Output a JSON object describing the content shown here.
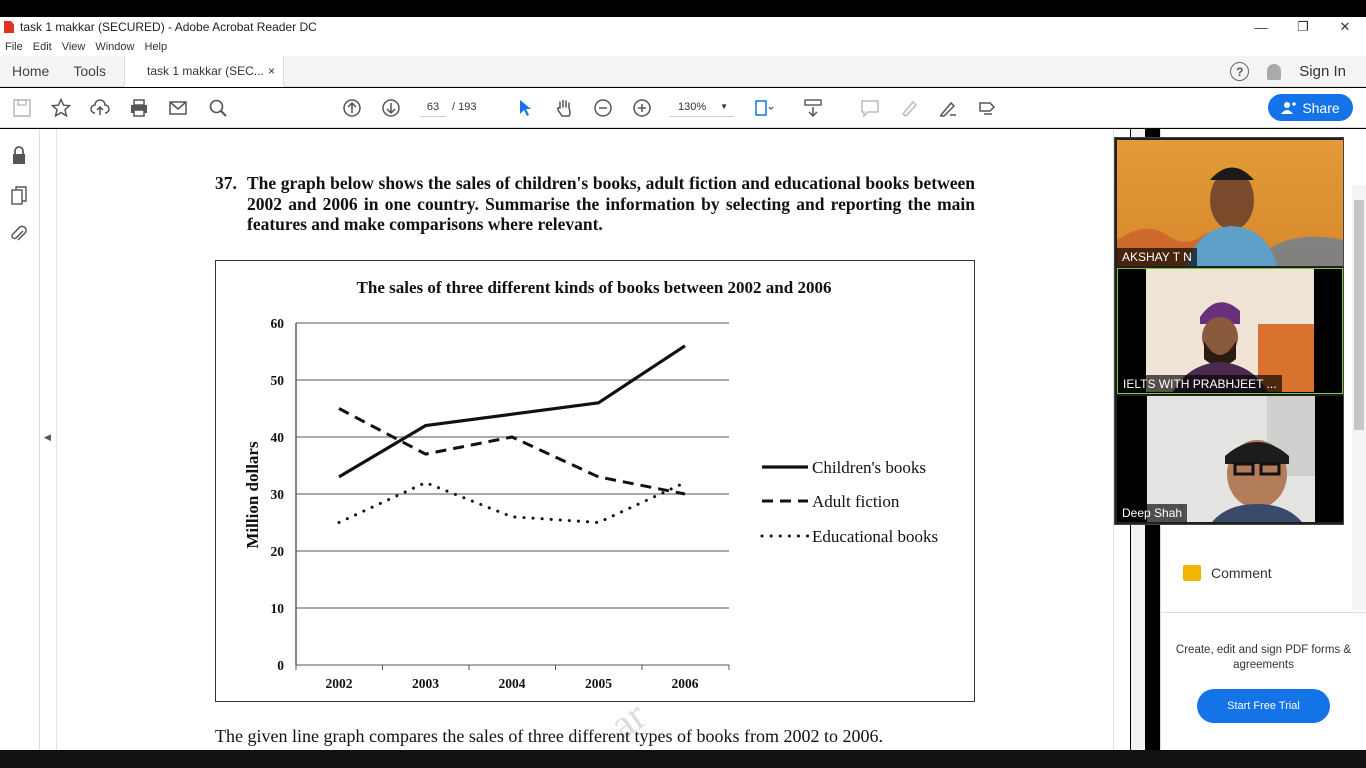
{
  "window": {
    "title": "task 1 makkar (SECURED) - Adobe Acrobat Reader DC",
    "minimize_glyph": "—",
    "restore_glyph": "❐",
    "close_glyph": "✕"
  },
  "menu": [
    "File",
    "Edit",
    "View",
    "Window",
    "Help"
  ],
  "tabs": {
    "home": "Home",
    "tools": "Tools",
    "document": "task 1 makkar (SEC...",
    "close_glyph": "×",
    "help_glyph": "?",
    "sign_in": "Sign In"
  },
  "toolbar": {
    "page_current": "63",
    "page_total": "/ 193",
    "zoom": "130%",
    "share": "Share"
  },
  "document": {
    "question_number": "37.",
    "question_text": "The graph below shows the sales of children's books, adult fiction and educational books between 2002 and 2006 in one country. Summarise the information by selecting and reporting the main features and make comparisons where relevant.",
    "answer_text": "The given line graph compares the sales of three different types of books from 2002 to 2006.",
    "watermark": "ar"
  },
  "chart_data": {
    "type": "line",
    "title": "The sales of three different kinds of books between 2002 and 2006",
    "xlabel": "",
    "ylabel": "Million dollars",
    "categories": [
      "2002",
      "2003",
      "2004",
      "2005",
      "2006"
    ],
    "ylim": [
      0,
      60
    ],
    "yticks": [
      "0",
      "10",
      "20",
      "30",
      "40",
      "50",
      "60"
    ],
    "grid": true,
    "legend_position": "right",
    "series": [
      {
        "name": "Children's books",
        "style": "solid",
        "values": [
          33,
          42,
          44,
          46,
          56
        ]
      },
      {
        "name": "Adult fiction",
        "style": "dashed",
        "values": [
          45,
          37,
          40,
          33,
          30
        ]
      },
      {
        "name": "Educational books",
        "style": "dotted",
        "values": [
          25,
          32,
          26,
          25,
          32
        ]
      }
    ]
  },
  "right_panel": {
    "comment_label": "Comment",
    "promo_text": "Create, edit and sign PDF forms & agreements",
    "trial_button": "Start Free Trial"
  },
  "video": {
    "participants": [
      "AKSHAY T N",
      "IELTS WITH PRABHJEET ...",
      "Deep Shah"
    ]
  }
}
